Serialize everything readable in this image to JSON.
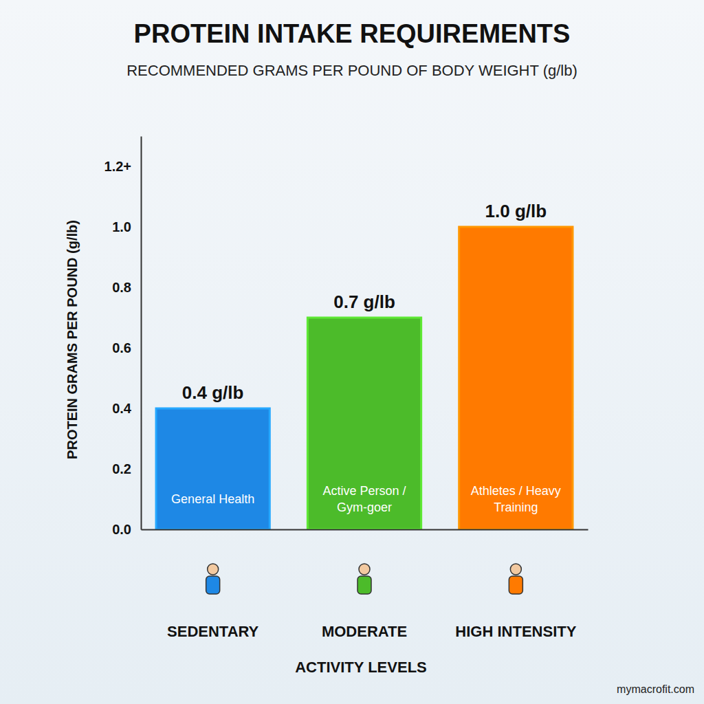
{
  "chart_data": {
    "type": "bar",
    "title": "PROTEIN INTAKE REQUIREMENTS",
    "subtitle": "RECOMMENDED GRAMS PER POUND OF BODY WEIGHT (g/lb)",
    "x_label": "ACTIVITY LEVELS",
    "y_label": "PROTEIN GRAMS PER POUND (g/lb)",
    "categories": [
      "SEDENTARY",
      "MODERATE",
      "HIGH INTENSITY"
    ],
    "values": [
      0.4,
      0.7,
      1.0
    ],
    "value_labels": [
      "0.4 g/lb",
      "0.7 g/lb",
      "1.0 g/lb"
    ],
    "annotations": [
      "General Health",
      "Active Person / Gym-goer",
      "Athletes / Heavy Training"
    ],
    "source": "mymacrofit.com",
    "colors": [
      "#1e88e5",
      "#4cbb2a",
      "#ff7a00"
    ],
    "ylim": [
      0,
      1.3
    ],
    "yticks": [
      {
        "value": 0,
        "label": "0.0"
      },
      0.2,
      0.4,
      0.6,
      0.8,
      {
        "value": 1.0,
        "label": "1.0"
      },
      {
        "value": 1.2,
        "label": "1.2+"
      }
    ],
    "grid": false,
    "data_labels": true
  }
}
